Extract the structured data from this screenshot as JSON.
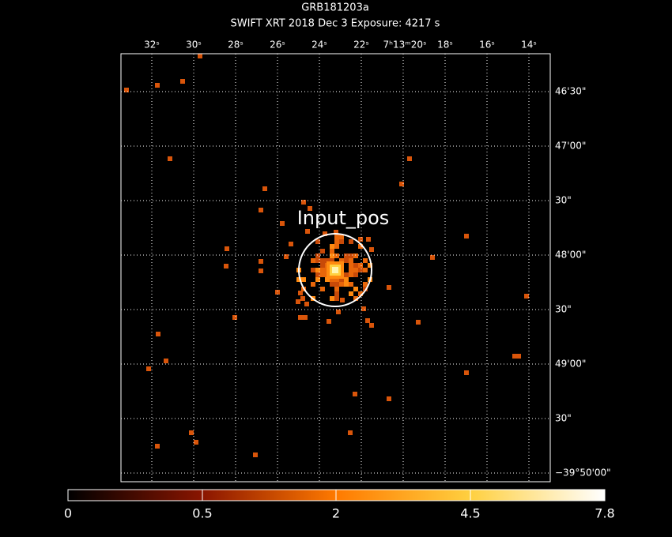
{
  "header": {
    "title": "GRB181203a",
    "subtitle": "SWIFT XRT   2018 Dec  3    Exposure: 4217 s"
  },
  "x_axis": {
    "labels": [
      "32ˢ",
      "30ˢ",
      "28ˢ",
      "26ˢ",
      "24ˢ",
      "22ˢ",
      "7ʰ13ᵐ20ˢ",
      "18ˢ",
      "16ˢ",
      "14ˢ"
    ]
  },
  "y_axis": {
    "labels": [
      "46'30\"",
      "47'00\"",
      "30\"",
      "48'00\"",
      "30\"",
      "49'00\"",
      "30\"",
      "−39°50'00\""
    ]
  },
  "annotation": "Input_pos",
  "colorbar": {
    "labels": [
      "0",
      "0.5",
      "2",
      "4.5",
      "7.8"
    ]
  }
}
